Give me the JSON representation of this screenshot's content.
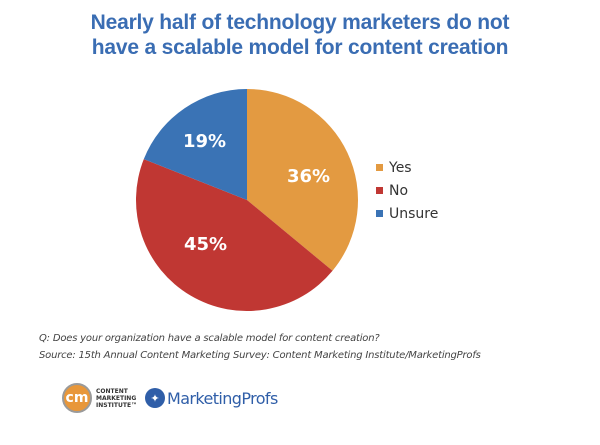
{
  "title_line1": "Nearly half of technology marketers do not",
  "title_line2": "have a scalable model for content creation",
  "chart_data": {
    "type": "pie",
    "title": "Nearly half of technology marketers do not have a scalable model for content creation",
    "categories": [
      "Yes",
      "No",
      "Unsure"
    ],
    "values": [
      36,
      45,
      19
    ],
    "labels": [
      "36%",
      "45%",
      "19%"
    ],
    "colors": [
      "#e39a41",
      "#c03733",
      "#3a73b5"
    ],
    "legend_position": "right",
    "start_angle": "12 o'clock, clockwise"
  },
  "legend": [
    {
      "label": "Yes",
      "color": "#e39a41"
    },
    {
      "label": "No",
      "color": "#c03733"
    },
    {
      "label": "Unsure",
      "color": "#3a73b5"
    }
  ],
  "footnotes": {
    "question": "Q: Does your organization have a scalable model for content creation?",
    "source": "Source: 15th Annual Content Marketing Survey: Content Marketing Institute/MarketingProfs"
  },
  "logos": {
    "cmi_mark": "cm",
    "cmi_line1": "CONTENT",
    "cmi_line2": "MARKETING",
    "cmi_line3": "INSTITUTE™",
    "mp_icon": "bird-globe-icon",
    "mp_name": "MarketingProfs"
  }
}
